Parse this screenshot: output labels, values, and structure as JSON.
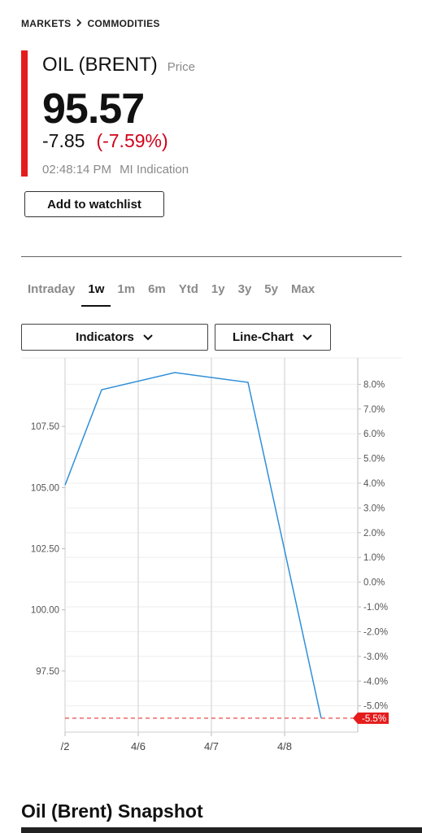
{
  "breadcrumb": {
    "parent": "MARKETS",
    "current": "COMMODITIES"
  },
  "quote": {
    "name": "OIL (BRENT)",
    "price_label": "Price",
    "price": "95.57",
    "change": "-7.85",
    "change_pct": "(-7.59%)",
    "time": "02:48:14 PM",
    "source": "MI Indication"
  },
  "watchlist_label": "Add to watchlist",
  "ranges": [
    "Intraday",
    "1w",
    "1m",
    "6m",
    "Ytd",
    "1y",
    "3y",
    "5y",
    "Max"
  ],
  "active_range": "1w",
  "dropdowns": {
    "indicators": "Indicators",
    "chart_type": "Line-Chart"
  },
  "colors": {
    "accent": "#e41c1c",
    "negative": "#d0021b",
    "line": "#2f8fd8"
  },
  "chart_data": {
    "type": "line",
    "x_ticks": [
      "/2",
      "4/6",
      "4/7",
      "4/8"
    ],
    "x_points": [
      "4/5",
      "4/5.5",
      "4/6.5",
      "4/7.5",
      "4/8.5"
    ],
    "values": [
      105.1,
      109.0,
      109.7,
      109.3,
      95.57
    ],
    "left_ticks": [
      "107.50",
      "105.00",
      "102.50",
      "100.00",
      "97.50"
    ],
    "left_tick_values": [
      107.5,
      105.0,
      102.5,
      100.0,
      97.5
    ],
    "right_ticks": [
      "8.0%",
      "7.0%",
      "6.0%",
      "5.0%",
      "4.0%",
      "3.0%",
      "2.0%",
      "1.0%",
      "0.0%",
      "-1.0%",
      "-2.0%",
      "-3.0%",
      "-4.0%",
      "-5.0%"
    ],
    "right_tick_values": [
      8,
      7,
      6,
      5,
      4,
      3,
      2,
      1,
      0,
      -1,
      -2,
      -3,
      -4,
      -5
    ],
    "current_value": 95.57,
    "current_label": "-5.5%",
    "ylim": [
      95.0,
      110.3
    ]
  },
  "snapshot_title": "Oil (Brent) Snapshot"
}
